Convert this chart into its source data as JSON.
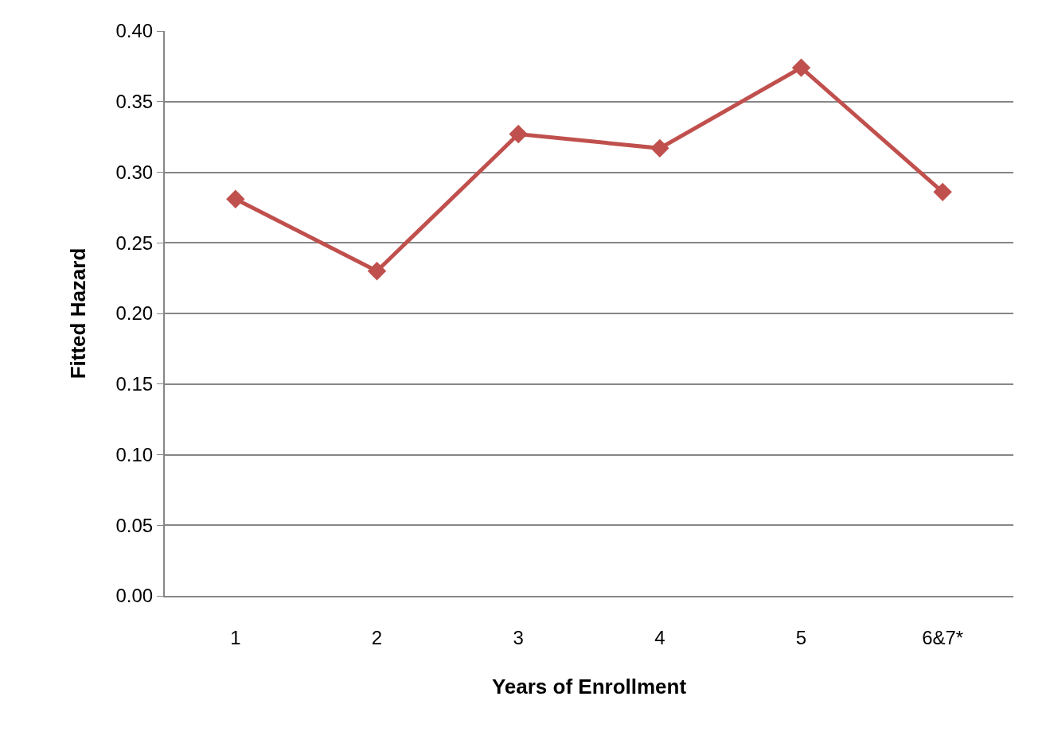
{
  "chart_data": {
    "type": "line",
    "xlabel": "Years of Enrollment",
    "ylabel": "Fitted Hazard",
    "categories": [
      "1",
      "2",
      "3",
      "4",
      "5",
      "6&7*"
    ],
    "series": [
      {
        "color": "#c0504d",
        "values": [
          0.281,
          0.23,
          0.327,
          0.317,
          0.374,
          0.286
        ]
      }
    ],
    "ylim": [
      0,
      0.4
    ],
    "yticks": [
      {
        "value": 0,
        "label": "0.00"
      },
      {
        "value": 0.05,
        "label": "0.05"
      },
      {
        "value": 0.1,
        "label": "0.10"
      },
      {
        "value": 0.15,
        "label": "0.15"
      },
      {
        "value": 0.2,
        "label": "0.20"
      },
      {
        "value": 0.25,
        "label": "0.25"
      },
      {
        "value": 0.3,
        "label": "0.30"
      },
      {
        "value": 0.35,
        "label": "0.35"
      },
      {
        "value": 0.4,
        "label": "0.40"
      }
    ],
    "grid": "y",
    "marker": "diamond",
    "line_style": "solid"
  }
}
